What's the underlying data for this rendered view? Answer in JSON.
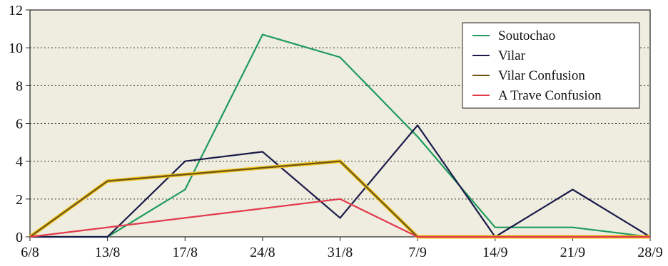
{
  "chart_data": {
    "type": "line",
    "categories": [
      "6/8",
      "13/8",
      "17/8",
      "24/8",
      "31/8",
      "7/9",
      "14/9",
      "21/9",
      "28/9"
    ],
    "ylim": [
      0,
      12
    ],
    "yticks": [
      0,
      2,
      4,
      6,
      8,
      10,
      12
    ],
    "grid": "horizontal dotted",
    "legend_position": "top-right",
    "plot_background": "#eeeddf",
    "series": [
      {
        "name": "Soutochao",
        "color": "#1f9a5c",
        "values": [
          0,
          0,
          2.5,
          10.7,
          9.5,
          5.3,
          0.5,
          0.5,
          0
        ]
      },
      {
        "name": "Vilar",
        "color": "#1a1a4a",
        "values": [
          0,
          0,
          4.0,
          4.5,
          1.0,
          5.9,
          0,
          2.5,
          0
        ]
      },
      {
        "name": "Vilar Confusion",
        "color": "#6b5418",
        "glow": "#f2c41e",
        "values": [
          0,
          2.95,
          null,
          null,
          4.0,
          0,
          0,
          0,
          0
        ]
      },
      {
        "name": "A Trave Confusion",
        "color": "#e23a4c",
        "values": [
          0,
          null,
          null,
          null,
          2.0,
          0,
          0,
          0,
          0
        ]
      }
    ]
  }
}
